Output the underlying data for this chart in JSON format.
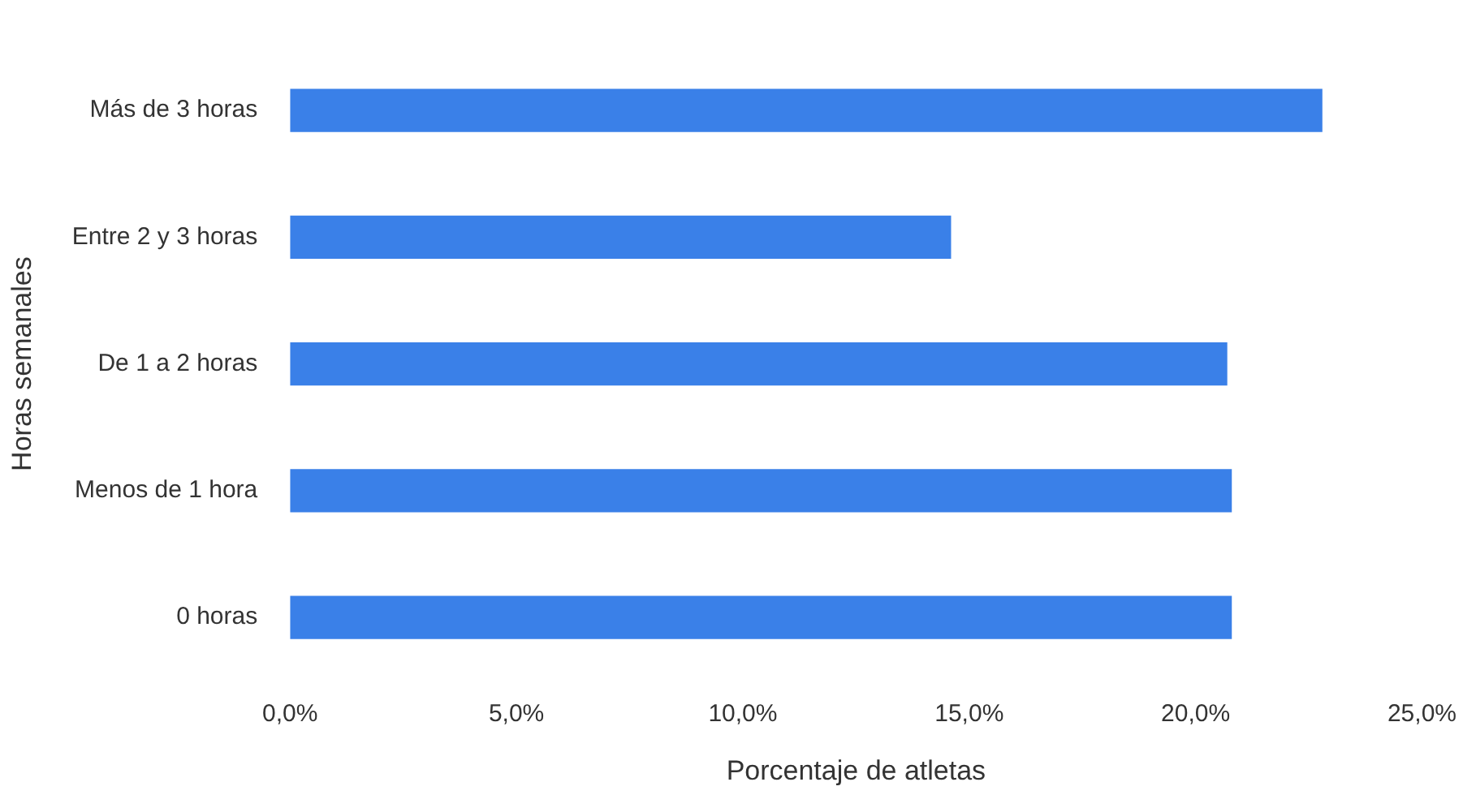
{
  "chart_data": {
    "type": "bar",
    "orientation": "horizontal",
    "xlabel": "Porcentaje de atletas",
    "ylabel": "Horas semanales",
    "categories": [
      "Más de 3 horas",
      "Entre 2 y 3 horas",
      "De 1 a 2 horas",
      "Menos de 1 hora",
      "0 horas"
    ],
    "values": [
      22.8,
      14.6,
      20.7,
      20.8,
      20.8
    ],
    "color": "#3a80e8",
    "xlim": [
      0,
      25
    ],
    "xticks": [
      {
        "value": 0,
        "label": "0,0%"
      },
      {
        "value": 5,
        "label": "5,0%"
      },
      {
        "value": 10,
        "label": "10,0%"
      },
      {
        "value": 15,
        "label": "15,0%"
      },
      {
        "value": 20,
        "label": "20,0%"
      },
      {
        "value": 25,
        "label": "25,0%"
      }
    ],
    "grid": false,
    "legend": false
  }
}
